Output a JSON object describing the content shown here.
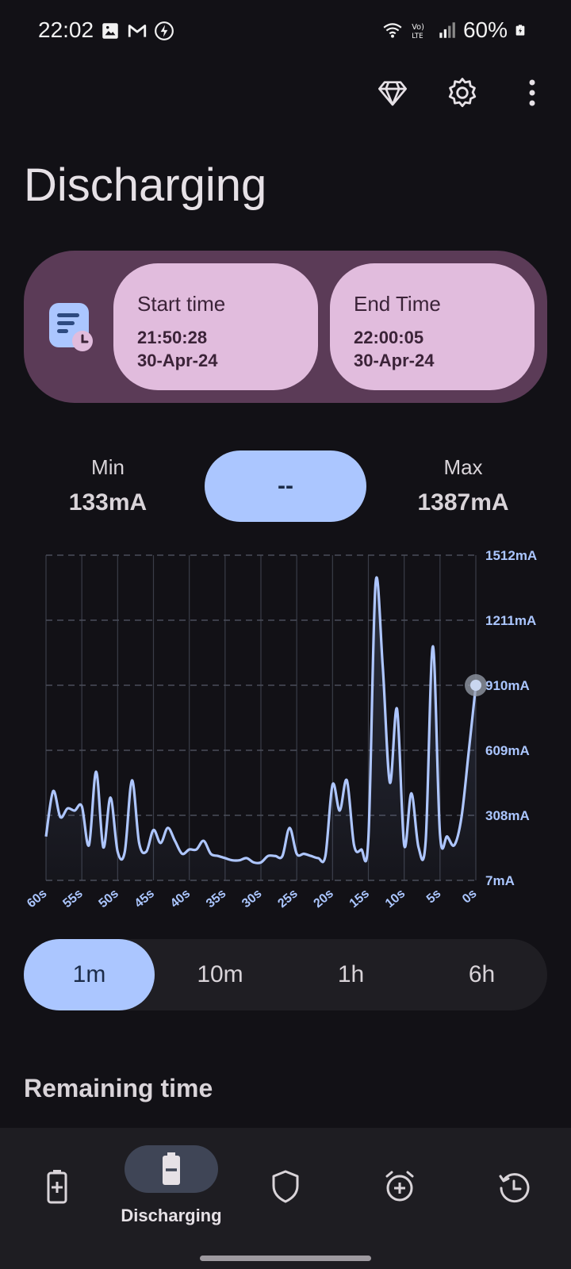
{
  "status_bar": {
    "time": "22:02",
    "battery": "60%",
    "left_icons": [
      "gallery-icon",
      "gmail-icon",
      "charging-bolt-icon"
    ],
    "right_icons": [
      "wifi-6-icon",
      "volte-icon",
      "signal-icon",
      "battery-icon"
    ]
  },
  "header": {
    "title": "Discharging",
    "actions": [
      "premium-diamond-icon",
      "settings-gear-icon",
      "more-vert-icon"
    ]
  },
  "session": {
    "start_label": "Start time",
    "start_time": "21:50:28",
    "start_date": "30-Apr-24",
    "end_label": "End Time",
    "end_time": "22:00:05",
    "end_date": "30-Apr-24"
  },
  "stats": {
    "min_label": "Min",
    "min_value": "133mA",
    "current_value": "--",
    "max_label": "Max",
    "max_value": "1387mA"
  },
  "chart_data": {
    "type": "area",
    "ylabel": "",
    "xlabel": "",
    "y_ticks": [
      "1512mA",
      "1211mA",
      "910mA",
      "609mA",
      "308mA",
      "7mA"
    ],
    "ylim": [
      7,
      1512
    ],
    "x_ticks": [
      "60s",
      "55s",
      "50s",
      "45s",
      "40s",
      "35s",
      "30s",
      "25s",
      "20s",
      "15s",
      "10s",
      "5s",
      "0s"
    ],
    "x_seconds_ago": [
      60,
      59,
      58,
      57,
      56,
      55,
      54,
      53,
      52,
      51,
      50,
      49,
      48,
      47,
      46,
      45,
      44,
      43,
      42,
      41,
      40,
      39,
      38,
      37,
      36,
      35,
      34,
      33,
      32,
      31,
      30,
      29,
      28,
      27,
      26,
      25,
      24,
      23,
      22,
      21,
      20,
      19,
      18,
      17,
      16,
      15,
      14,
      13,
      12,
      11,
      10,
      9,
      8,
      7,
      6,
      5,
      4,
      3,
      2,
      1,
      0
    ],
    "values": [
      210,
      420,
      300,
      340,
      330,
      350,
      170,
      510,
      160,
      390,
      140,
      140,
      470,
      180,
      140,
      240,
      180,
      250,
      190,
      130,
      150,
      150,
      190,
      130,
      120,
      110,
      100,
      100,
      110,
      90,
      90,
      120,
      120,
      120,
      250,
      130,
      130,
      120,
      110,
      120,
      450,
      330,
      470,
      170,
      150,
      200,
      1380,
      1000,
      460,
      800,
      170,
      410,
      160,
      190,
      1090,
      220,
      210,
      170,
      300,
      600,
      910
    ],
    "current_marker_value": 910,
    "line_color": "#aec6ff",
    "grid": true
  },
  "ranges": {
    "options": [
      "1m",
      "10m",
      "1h",
      "6h"
    ],
    "selected": "1m"
  },
  "remaining": {
    "title": "Remaining time"
  },
  "bottom_nav": {
    "items": [
      "charging",
      "discharging",
      "health",
      "alarm",
      "history"
    ],
    "active_label": "Discharging"
  }
}
